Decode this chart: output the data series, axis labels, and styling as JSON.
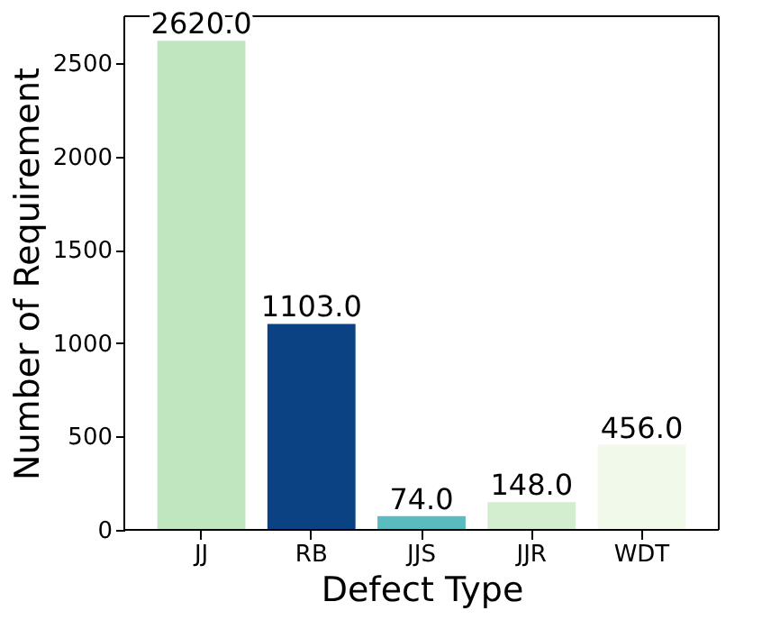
{
  "chart_data": {
    "type": "bar",
    "categories": [
      "JJ",
      "RB",
      "JJS",
      "JJR",
      "WDT"
    ],
    "values": [
      2620.0,
      1103.0,
      74.0,
      148.0,
      456.0
    ],
    "colors": [
      "#c0e6c0",
      "#0a4283",
      "#5bbcbf",
      "#d3edcf",
      "#f1f9ea"
    ],
    "value_labels": [
      "2620.0",
      "1103.0",
      "74.0",
      "148.0",
      "456.0"
    ],
    "xlabel": "Defect Type",
    "ylabel": "Number of Requirement",
    "ylim": [
      0,
      2751
    ],
    "yticks": [
      0,
      500,
      1000,
      1500,
      2000,
      2500
    ],
    "grid": false
  }
}
